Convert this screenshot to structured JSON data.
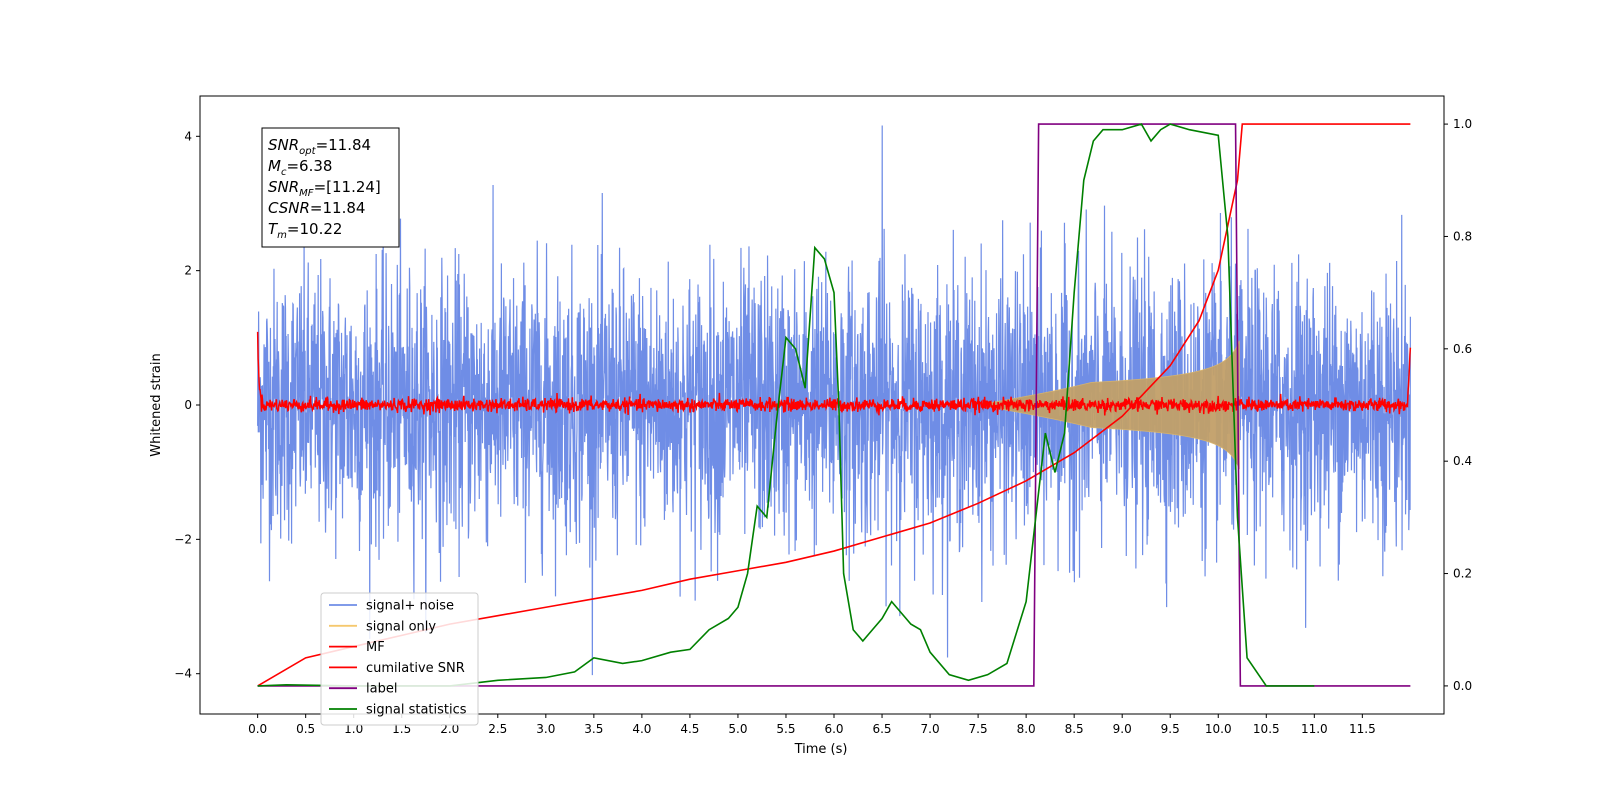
{
  "chart_data": {
    "type": "line",
    "title": "",
    "xlabel": "Time (s)",
    "ylabel": "Whitened strain",
    "xlim": [
      -0.6,
      12.35
    ],
    "ylim": [
      -4.6,
      4.6
    ],
    "y2lim": [
      -0.05,
      1.05
    ],
    "xticks": [
      "0.0",
      "0.5",
      "1.0",
      "1.5",
      "2.0",
      "2.5",
      "3.0",
      "3.5",
      "4.0",
      "4.5",
      "5.0",
      "5.5",
      "6.0",
      "6.5",
      "7.0",
      "7.5",
      "8.0",
      "8.5",
      "9.0",
      "9.5",
      "10.0",
      "10.5",
      "11.0",
      "11.5"
    ],
    "yticks": [
      "−4",
      "−2",
      "0",
      "2",
      "4"
    ],
    "y2ticks": [
      "0.0",
      "0.2",
      "0.4",
      "0.6",
      "0.8",
      "1.0"
    ],
    "grid": false,
    "legend_position": "lower-left",
    "annotation": {
      "lines": [
        {
          "sym": "SNR",
          "sub": "opt",
          "value": "=11.84"
        },
        {
          "sym": "M",
          "sub": "c",
          "value": "=6.38"
        },
        {
          "sym": "SNR",
          "sub": "MF",
          "value": "=[11.24]"
        },
        {
          "sym": "CSNR",
          "sub": "",
          "value": "=11.84"
        },
        {
          "sym": "T",
          "sub": "m",
          "value": "=10.22"
        }
      ]
    },
    "colors": {
      "noise": "#6f8de6",
      "signal": "#c2a069",
      "mf": "#ff0000",
      "csnr": "#ff0000",
      "label": "#800080",
      "stats": "#008000"
    },
    "series": [
      {
        "name": "signal+ noise",
        "axis": "left",
        "kind": "noise",
        "x_range": [
          0,
          12.0
        ],
        "amplitude_std": 1.0,
        "peak": 4.16
      },
      {
        "name": "signal only",
        "axis": "left",
        "kind": "chirp",
        "x_range": [
          0,
          10.22
        ],
        "envelope_at_merger": 0.7
      },
      {
        "name": "MF",
        "axis": "left",
        "kind": "noise",
        "x_range": [
          0,
          12.0
        ],
        "amplitude_std": 0.05,
        "edge_values": [
          1.0,
          0.88
        ]
      },
      {
        "name": "cumilative SNR",
        "axis": "right",
        "x": [
          0.0,
          0.5,
          1.0,
          1.5,
          2.0,
          2.5,
          3.0,
          3.5,
          4.0,
          4.5,
          5.0,
          5.5,
          6.0,
          6.5,
          7.0,
          7.5,
          8.0,
          8.5,
          9.0,
          9.5,
          9.8,
          10.0,
          10.2,
          10.25,
          11.0,
          12.0
        ],
        "y": [
          0.0,
          0.05,
          0.07,
          0.09,
          0.11,
          0.125,
          0.14,
          0.155,
          0.17,
          0.19,
          0.205,
          0.22,
          0.24,
          0.265,
          0.29,
          0.325,
          0.365,
          0.415,
          0.48,
          0.57,
          0.65,
          0.74,
          0.9,
          1.0,
          1.0,
          1.0
        ]
      },
      {
        "name": "label",
        "axis": "right",
        "x": [
          0.0,
          8.08,
          8.13,
          10.18,
          10.23,
          12.0
        ],
        "y": [
          0.0,
          0.0,
          1.0,
          1.0,
          0.0,
          0.0
        ]
      },
      {
        "name": "signal statistics",
        "axis": "right",
        "x": [
          0.0,
          0.3,
          1.0,
          2.0,
          2.5,
          3.0,
          3.3,
          3.5,
          3.8,
          4.0,
          4.3,
          4.5,
          4.7,
          4.9,
          5.0,
          5.1,
          5.2,
          5.3,
          5.4,
          5.5,
          5.6,
          5.7,
          5.8,
          5.9,
          6.0,
          6.05,
          6.1,
          6.2,
          6.3,
          6.4,
          6.5,
          6.6,
          6.7,
          6.8,
          6.9,
          7.0,
          7.2,
          7.4,
          7.6,
          7.8,
          8.0,
          8.1,
          8.2,
          8.3,
          8.4,
          8.5,
          8.6,
          8.7,
          8.8,
          9.0,
          9.2,
          9.3,
          9.4,
          9.5,
          9.7,
          10.0,
          10.1,
          10.2,
          10.3,
          10.5,
          11.0
        ],
        "y": [
          0.0,
          0.002,
          0.0,
          0.0,
          0.01,
          0.015,
          0.025,
          0.05,
          0.04,
          0.045,
          0.06,
          0.065,
          0.1,
          0.12,
          0.14,
          0.2,
          0.32,
          0.3,
          0.47,
          0.62,
          0.6,
          0.53,
          0.78,
          0.76,
          0.7,
          0.5,
          0.2,
          0.1,
          0.08,
          0.1,
          0.12,
          0.15,
          0.13,
          0.11,
          0.1,
          0.06,
          0.02,
          0.01,
          0.02,
          0.04,
          0.15,
          0.3,
          0.45,
          0.38,
          0.45,
          0.7,
          0.9,
          0.97,
          0.99,
          0.99,
          1.0,
          0.97,
          0.99,
          1.0,
          0.99,
          0.98,
          0.8,
          0.3,
          0.05,
          0.0,
          0.0
        ]
      }
    ]
  }
}
